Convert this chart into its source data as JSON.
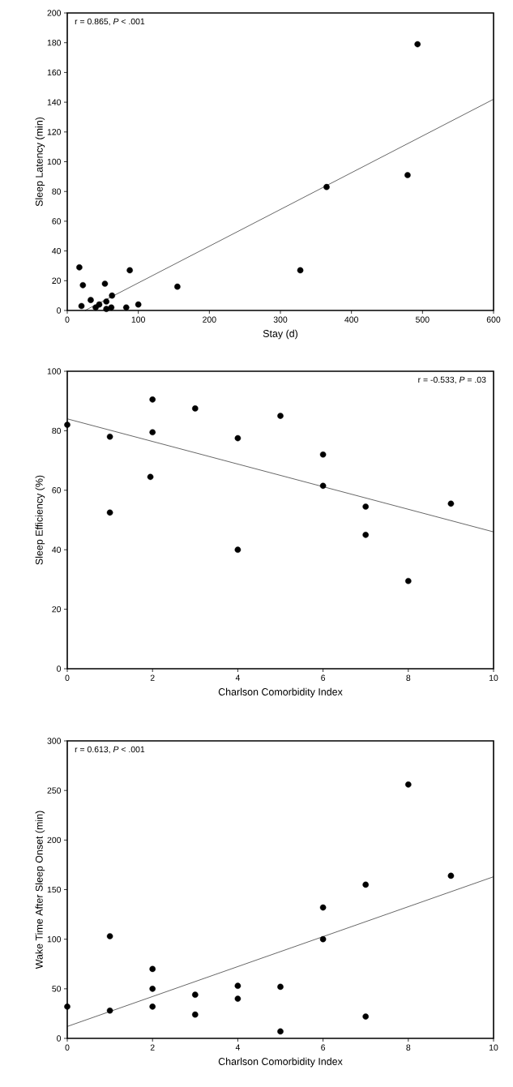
{
  "chart_data": [
    {
      "type": "scatter",
      "xlabel": "Stay (d)",
      "ylabel": "Sleep Latency (min)",
      "annotations": [
        "r = 0.865, *P* < .001"
      ],
      "xlim": [
        0,
        600
      ],
      "ylim": [
        0,
        200
      ],
      "xticks": [
        0,
        100,
        200,
        300,
        400,
        500,
        600
      ],
      "yticks": [
        0,
        20,
        40,
        60,
        80,
        100,
        120,
        140,
        160,
        180,
        200
      ],
      "grid": false,
      "series": [
        {
          "color": "#000000",
          "marker": "circle",
          "x": [
            17,
            22,
            20,
            33,
            45,
            40,
            55,
            55,
            53,
            63,
            62,
            83,
            88,
            100,
            155,
            328,
            365,
            479,
            493
          ],
          "values": [
            29,
            17,
            3,
            7,
            4,
            2,
            6,
            1,
            18,
            10,
            2,
            2,
            27,
            4,
            16,
            27,
            83,
            91,
            179
          ]
        },
        {
          "type": "line",
          "marker": "none",
          "color": "#000000",
          "x": [
            25,
            600
          ],
          "values": [
            0,
            142
          ]
        }
      ]
    },
    {
      "type": "scatter",
      "xlabel": "Charlson Comorbidity Index",
      "ylabel": "Sleep Efficiency (%)",
      "annotations": [
        "r = -0.533, *P* = .03"
      ],
      "xlim": [
        0,
        10
      ],
      "ylim": [
        0,
        100
      ],
      "xticks": [
        0,
        2,
        4,
        6,
        8,
        10
      ],
      "yticks": [
        0,
        20,
        40,
        60,
        80,
        100
      ],
      "grid": false,
      "series": [
        {
          "color": "#000000",
          "marker": "circle",
          "x": [
            0,
            1,
            1,
            2,
            2,
            1.95,
            3,
            4,
            4,
            5,
            6,
            6,
            7,
            7,
            8,
            9
          ],
          "values": [
            82,
            78,
            52.5,
            90.5,
            79.5,
            64.5,
            87.5,
            77.5,
            40,
            85,
            72,
            61.5,
            54.5,
            45,
            29.5,
            55.5
          ]
        },
        {
          "type": "line",
          "marker": "none",
          "color": "#000000",
          "x": [
            0,
            10
          ],
          "values": [
            84,
            46
          ]
        }
      ]
    },
    {
      "type": "scatter",
      "xlabel": "Charlson Comorbidity Index",
      "ylabel": "Wake Time After Sleep Onset (min)",
      "annotations": [
        "r = 0.613, *P* < .001"
      ],
      "xlim": [
        0,
        10
      ],
      "ylim": [
        0,
        300
      ],
      "xticks": [
        0,
        2,
        4,
        6,
        8,
        10
      ],
      "yticks": [
        0,
        50,
        100,
        150,
        200,
        250,
        300
      ],
      "grid": false,
      "series": [
        {
          "color": "#000000",
          "marker": "circle",
          "x": [
            0,
            1,
            1,
            2,
            2,
            2,
            3,
            3,
            4,
            4,
            5,
            5,
            6,
            6,
            7,
            7,
            8,
            9
          ],
          "values": [
            32,
            103,
            28,
            70,
            50,
            32,
            44,
            24,
            53,
            40,
            52,
            7,
            132,
            100,
            155,
            22,
            256,
            164
          ]
        },
        {
          "type": "line",
          "marker": "none",
          "color": "#000000",
          "x": [
            0,
            10
          ],
          "values": [
            12,
            163
          ]
        }
      ]
    }
  ]
}
